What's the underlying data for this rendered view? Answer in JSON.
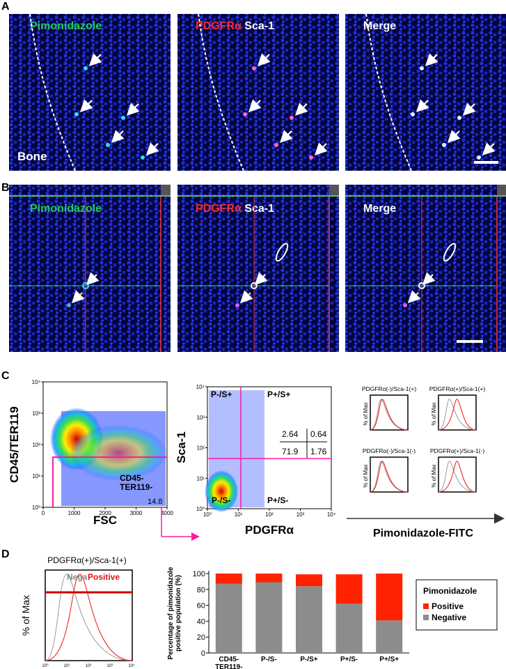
{
  "panel_labels": [
    "A",
    "B",
    "C",
    "D"
  ],
  "A": {
    "stain_green": "Pimonidazole",
    "stain_red": "PDGFRα",
    "stain_white": "Sca-1",
    "merge": "Merge",
    "bone": "Bone"
  },
  "B": {
    "stain_green": "Pimonidazole",
    "stain_red": "PDGFRα",
    "stain_white": "Sca-1",
    "merge": "Merge"
  },
  "C": {
    "plot1": {
      "y_label": "CD45/TER119",
      "x_label": "FSC",
      "yticks": [
        "10⁰",
        "10¹",
        "10²",
        "10³",
        "10⁴"
      ],
      "xticks": [
        "0",
        "1000",
        "2000",
        "3000",
        "4000"
      ],
      "gate_label": "CD45-\nTER119-",
      "gate_value": 14.8
    },
    "plot2": {
      "y_label": "Sca-1",
      "x_label": "PDGFRα",
      "yticks": [
        "10⁰",
        "10¹",
        "10²",
        "10³",
        "10⁴"
      ],
      "xticks": [
        "10⁰",
        "10¹",
        "10²",
        "10³",
        "10⁴"
      ],
      "quadrants": [
        "P-/S+",
        "P+/S+",
        "P-/S-",
        "P+/S-"
      ],
      "percentages": [
        2.64,
        0.64,
        71.9,
        1.76
      ]
    },
    "histograms": {
      "titles": [
        "PDGFRα(-)/Sca-1(+)",
        "PDGFRα(+)/Sca-1(+)",
        "PDGFRα(-)/Sca-1(-)",
        "PDGFRα(+)/Sca-1(-)"
      ],
      "y_label": "% of Max",
      "x_label": "Pimonidazole-FITC"
    }
  },
  "D": {
    "histogram": {
      "title": "PDGFRα(+)/Sca-1(+)",
      "y_label": "% of Max",
      "negative": "Nega",
      "positive": "Positive",
      "xticks": [
        "10⁰",
        "10¹",
        "10²",
        "10³",
        "10⁴"
      ]
    }
  },
  "chart_data": {
    "type": "bar",
    "stacked": true,
    "y_label": "Percentage of pimonidazole\npositive population (%)",
    "categories": [
      "CD45-\nTER119-",
      "P-/S-",
      "P-/S+",
      "P+/S-",
      "P+/S+"
    ],
    "series": [
      {
        "name": "Negative",
        "color": "#8c8c8c",
        "values": [
          87,
          89,
          84,
          62,
          41
        ]
      },
      {
        "name": "Positive",
        "color": "#ff2200",
        "values": [
          13,
          11,
          15,
          37,
          59
        ]
      }
    ],
    "legend_title": "Pimonidazole",
    "ylim": [
      0,
      100
    ],
    "yticks": [
      0,
      20,
      40,
      60,
      80,
      100
    ]
  }
}
